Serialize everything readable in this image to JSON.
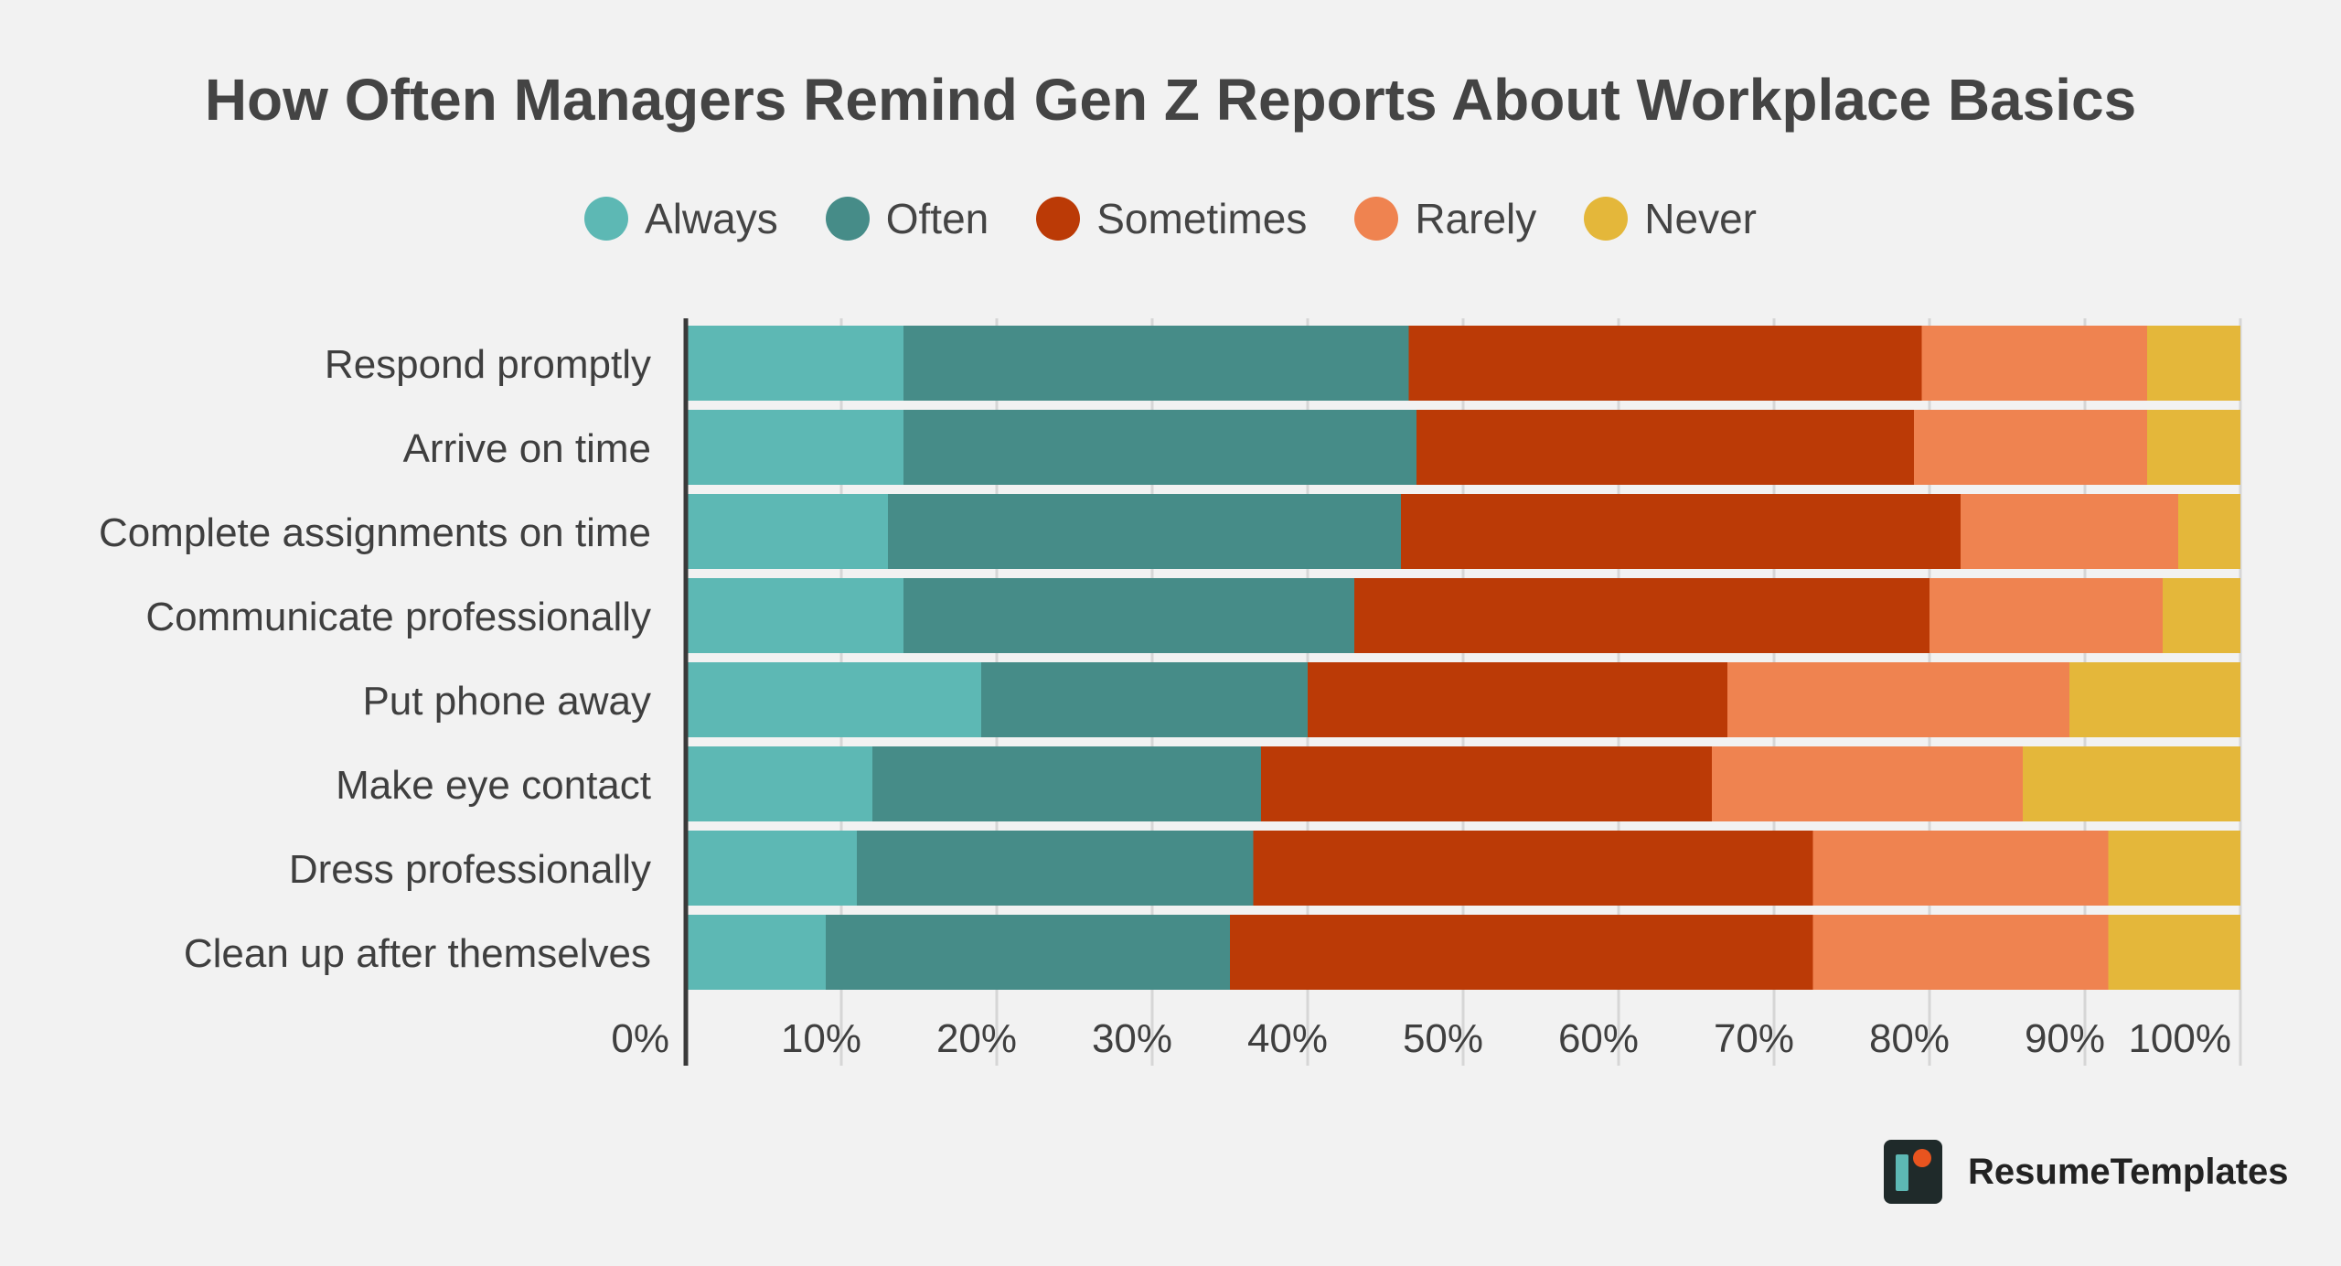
{
  "chart_data": {
    "type": "bar",
    "orientation": "horizontal",
    "stacked": true,
    "title": "How Often Managers Remind Gen Z Reports About Workplace Basics",
    "categories": [
      "Respond promptly",
      "Arrive on time",
      "Complete assignments on time",
      "Communicate professionally",
      "Put phone away",
      "Make eye contact",
      "Dress professionally",
      "Clean up after themselves"
    ],
    "series": [
      {
        "name": "Always",
        "color": "#5db8b4",
        "values": [
          14,
          14,
          13,
          14,
          19,
          12,
          11,
          9
        ]
      },
      {
        "name": "Often",
        "color": "#468c88",
        "values": [
          32.5,
          33,
          33,
          29,
          21,
          25,
          25.5,
          26
        ]
      },
      {
        "name": "Sometimes",
        "color": "#bb3a06",
        "values": [
          33,
          32,
          36,
          37,
          27,
          29,
          36,
          37.5
        ]
      },
      {
        "name": "Rarely",
        "color": "#ef8350",
        "values": [
          14.5,
          15,
          14,
          15,
          22,
          20,
          19,
          19
        ]
      },
      {
        "name": "Never",
        "color": "#e4b73a",
        "values": [
          6,
          6,
          4,
          5,
          11,
          14,
          8.5,
          8.5
        ]
      }
    ],
    "xlim": [
      0,
      100
    ],
    "x_ticks": [
      "0%",
      "10%",
      "20%",
      "30%",
      "40%",
      "50%",
      "60%",
      "70%",
      "80%",
      "90%",
      "100%"
    ],
    "grid": true,
    "legend_position": "top-center"
  },
  "brand": {
    "name": "ResumeTemplates",
    "logo_icon": "resume-templates-logo-icon"
  }
}
